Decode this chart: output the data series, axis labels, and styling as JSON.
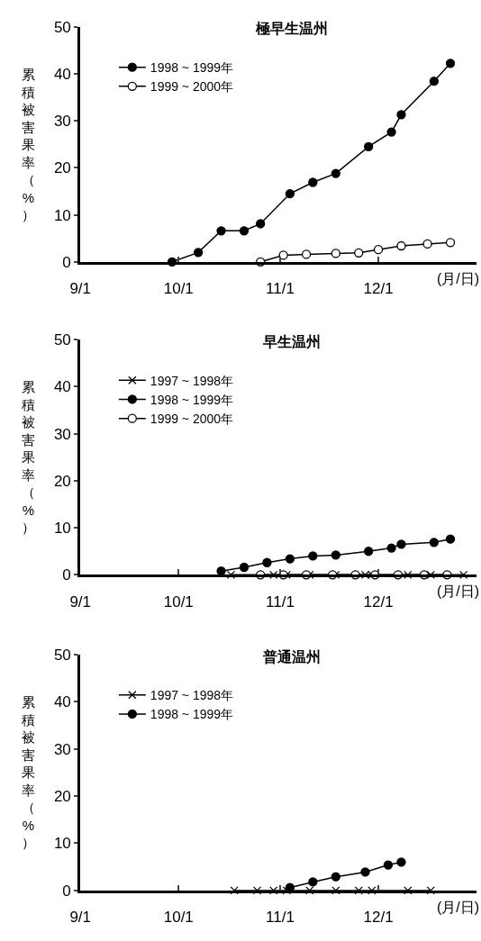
{
  "chart_data": [
    {
      "type": "line",
      "title": "極早生温州",
      "xlabel": "(月/日)",
      "ylabel": "累積被害果率（%）",
      "xlim": [
        "--09-01",
        "--12-31"
      ],
      "xticks": [
        {
          "value": "--09-01",
          "label": "9/1"
        },
        {
          "value": "--10-01",
          "label": "10/1"
        },
        {
          "value": "--11-01",
          "label": "11/1"
        },
        {
          "value": "--12-01",
          "label": "12/1"
        }
      ],
      "ylim": [
        0,
        50
      ],
      "yticks": [
        0,
        10,
        20,
        30,
        40,
        50
      ],
      "legend": "top left",
      "series": [
        {
          "name": "1998 ~ 1999年",
          "color": "#000000",
          "marker": "circle",
          "x": [
            "--09-29",
            "--10-07",
            "--10-14",
            "--10-21",
            "--10-26",
            "--11-04",
            "--11-11",
            "--11-18",
            "--11-28",
            "--12-05",
            "--12-08",
            "--12-18",
            "--12-23"
          ],
          "values": [
            0,
            2,
            6.6,
            6.6,
            8.1,
            14.5,
            16.9,
            18.8,
            24.5,
            27.6,
            31.3,
            38.4,
            42.2
          ]
        },
        {
          "name": "1999 ~ 2000年",
          "color": "#000000",
          "marker": "circle-open",
          "x": [
            "--10-26",
            "--11-02",
            "--11-09",
            "--11-18",
            "--11-25",
            "--12-01",
            "--12-08",
            "--12-16",
            "--12-23"
          ],
          "values": [
            0,
            1.4,
            1.6,
            1.8,
            1.9,
            2.6,
            3.4,
            3.8,
            4.1
          ]
        }
      ]
    },
    {
      "type": "line",
      "title": "早生温州",
      "xlabel": "(月/日)",
      "ylabel": "累積被害果率（%）",
      "xlim": [
        "--09-01",
        "--12-31"
      ],
      "xticks": [
        {
          "value": "--09-01",
          "label": "9/1"
        },
        {
          "value": "--10-01",
          "label": "10/1"
        },
        {
          "value": "--11-01",
          "label": "11/1"
        },
        {
          "value": "--12-01",
          "label": "12/1"
        }
      ],
      "ylim": [
        0,
        50
      ],
      "yticks": [
        0,
        10,
        20,
        30,
        40,
        50
      ],
      "legend": "top left",
      "series": [
        {
          "name": "1997 ~ 1998年",
          "color": "#000000",
          "marker": "cross",
          "x": [
            "--10-17",
            "--10-30",
            "--11-03",
            "--11-10",
            "--11-18",
            "--11-27",
            "--11-29",
            "--12-10",
            "--12-17",
            "--12-27"
          ],
          "values": [
            0,
            0,
            0,
            0,
            0,
            0,
            0,
            0,
            0,
            0
          ]
        },
        {
          "name": "1998 ~ 1999年",
          "color": "#000000",
          "marker": "circle",
          "x": [
            "--10-14",
            "--10-21",
            "--10-28",
            "--11-04",
            "--11-11",
            "--11-18",
            "--11-28",
            "--12-05",
            "--12-08",
            "--12-18",
            "--12-23"
          ],
          "values": [
            0.8,
            1.6,
            2.6,
            3.4,
            4.0,
            4.2,
            5.0,
            5.7,
            6.5,
            6.9,
            7.6
          ]
        },
        {
          "name": "1999 ~ 2000年",
          "color": "#000000",
          "marker": "circle-open",
          "x": [
            "--10-26",
            "--11-02",
            "--11-09",
            "--11-17",
            "--11-24",
            "--11-30",
            "--12-07",
            "--12-15",
            "--12-22"
          ],
          "values": [
            0,
            0,
            0,
            0,
            0,
            0,
            0,
            0,
            0
          ]
        }
      ]
    },
    {
      "type": "line",
      "title": "普通温州",
      "xlabel": "(月/日)",
      "ylabel": "累積被害果率（%）",
      "xlim": [
        "--09-01",
        "--12-31"
      ],
      "xticks": [
        {
          "value": "--09-01",
          "label": "9/1"
        },
        {
          "value": "--10-01",
          "label": "10/1"
        },
        {
          "value": "--11-01",
          "label": "11/1"
        },
        {
          "value": "--12-01",
          "label": "12/1"
        }
      ],
      "ylim": [
        0,
        50
      ],
      "yticks": [
        0,
        10,
        20,
        30,
        40,
        50
      ],
      "legend": "top left",
      "series": [
        {
          "name": "1997 ~ 1998年",
          "color": "#000000",
          "marker": "cross",
          "x": [
            "--10-18",
            "--10-25",
            "--10-30",
            "--11-03",
            "--11-10",
            "--11-18",
            "--11-25",
            "--11-29",
            "--12-10",
            "--12-17"
          ],
          "values": [
            0,
            0,
            0,
            0,
            0,
            0,
            0,
            0,
            0,
            0
          ]
        },
        {
          "name": "1998 ~ 1999年",
          "color": "#000000",
          "marker": "circle",
          "x": [
            "--11-04",
            "--11-11",
            "--11-18",
            "--11-27",
            "--12-04",
            "--12-08"
          ],
          "values": [
            0.6,
            1.8,
            2.9,
            3.9,
            5.4,
            6.0
          ]
        }
      ]
    }
  ]
}
